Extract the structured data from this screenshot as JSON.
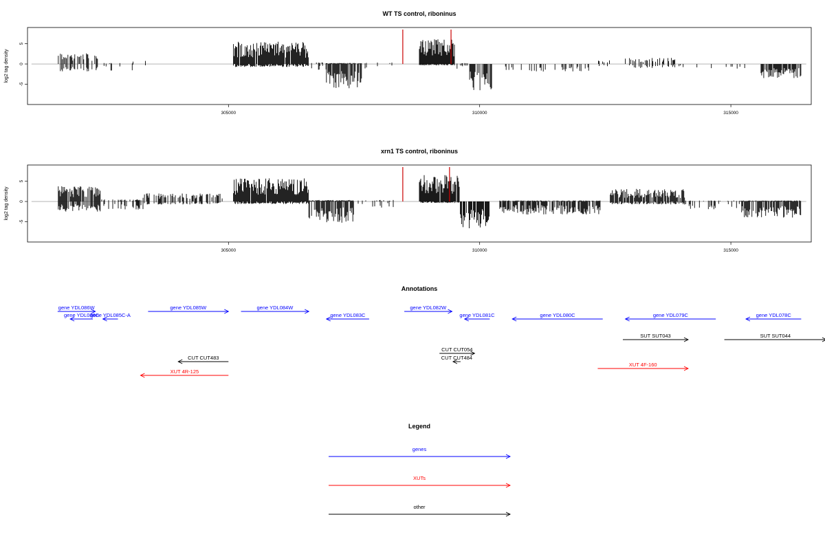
{
  "panels": [
    {
      "title": "WT TS control, riboninus",
      "ylabel": "log2 tag density",
      "yticks": [
        -5,
        0,
        5
      ],
      "ylim": [
        -10,
        9
      ],
      "xticks": [
        305000,
        310000,
        315000
      ],
      "xlim": [
        301000,
        316600
      ],
      "red_marks": [
        308470,
        309430
      ],
      "regions": [
        {
          "start": 301600,
          "end": 302400,
          "pos": 2.2,
          "neg": -1.6,
          "density": 0.55
        },
        {
          "start": 302400,
          "end": 303100,
          "pos": 0.2,
          "neg": -1.3,
          "density": 0.25
        },
        {
          "start": 303100,
          "end": 304300,
          "pos": 0.8,
          "neg": -0.3,
          "density": 0.04
        },
        {
          "start": 305100,
          "end": 306600,
          "pos": 4.4,
          "neg": -0.6,
          "density": 0.95
        },
        {
          "start": 306600,
          "end": 306950,
          "pos": 0.4,
          "neg": -1.2,
          "density": 0.2
        },
        {
          "start": 306950,
          "end": 307650,
          "pos": 0.2,
          "neg": -4.8,
          "density": 0.95
        },
        {
          "start": 307650,
          "end": 308300,
          "pos": 0.3,
          "neg": -1.0,
          "density": 0.15
        },
        {
          "start": 308800,
          "end": 309500,
          "pos": 5.0,
          "neg": -0.3,
          "density": 0.95
        },
        {
          "start": 309550,
          "end": 309800,
          "pos": 0.2,
          "neg": -1.0,
          "density": 0.2
        },
        {
          "start": 309800,
          "end": 310250,
          "pos": 0.1,
          "neg": -5.2,
          "density": 0.95
        },
        {
          "start": 310500,
          "end": 312200,
          "pos": 0.1,
          "neg": -1.5,
          "density": 0.3
        },
        {
          "start": 312200,
          "end": 312900,
          "pos": 0.8,
          "neg": -0.6,
          "density": 0.1
        },
        {
          "start": 312900,
          "end": 313900,
          "pos": 1.2,
          "neg": -0.8,
          "density": 0.3
        },
        {
          "start": 313900,
          "end": 314700,
          "pos": 0.1,
          "neg": -1.0,
          "density": 0.1
        },
        {
          "start": 314700,
          "end": 315300,
          "pos": 0.1,
          "neg": -1.0,
          "density": 0.12
        },
        {
          "start": 315600,
          "end": 316400,
          "pos": 0.1,
          "neg": -2.8,
          "density": 0.9
        }
      ]
    },
    {
      "title": "xrn1 TS control, riboninus",
      "ylabel": "log2 tag density",
      "yticks": [
        -5,
        0,
        5
      ],
      "ylim": [
        -10,
        9
      ],
      "xticks": [
        305000,
        310000,
        315000
      ],
      "xlim": [
        301000,
        316600
      ],
      "red_marks": [
        308470,
        309400
      ],
      "regions": [
        {
          "start": 301600,
          "end": 302450,
          "pos": 3.0,
          "neg": -2.0,
          "density": 0.85
        },
        {
          "start": 302450,
          "end": 303300,
          "pos": 0.4,
          "neg": -1.6,
          "density": 0.45
        },
        {
          "start": 303300,
          "end": 304900,
          "pos": 1.6,
          "neg": -0.6,
          "density": 0.55
        },
        {
          "start": 305100,
          "end": 306600,
          "pos": 4.6,
          "neg": -0.5,
          "density": 0.95
        },
        {
          "start": 306600,
          "end": 307500,
          "pos": 0.3,
          "neg": -4.2,
          "density": 0.95
        },
        {
          "start": 307500,
          "end": 308300,
          "pos": 0.3,
          "neg": -1.2,
          "density": 0.2
        },
        {
          "start": 308800,
          "end": 309600,
          "pos": 5.2,
          "neg": -0.3,
          "density": 0.95
        },
        {
          "start": 309600,
          "end": 310200,
          "pos": 0.1,
          "neg": -5.4,
          "density": 0.95
        },
        {
          "start": 310400,
          "end": 312400,
          "pos": 0.2,
          "neg": -2.6,
          "density": 0.85
        },
        {
          "start": 312600,
          "end": 314100,
          "pos": 2.5,
          "neg": -0.6,
          "density": 0.8
        },
        {
          "start": 314100,
          "end": 315200,
          "pos": 0.2,
          "neg": -1.6,
          "density": 0.25
        },
        {
          "start": 315200,
          "end": 316400,
          "pos": 0.2,
          "neg": -3.2,
          "density": 0.95
        }
      ]
    }
  ],
  "annotations": {
    "title": "Annotations",
    "features": [
      {
        "label": "gene YDL086W",
        "start": 301600,
        "end": 302350,
        "dir": "right",
        "color": "#0000ff",
        "row": 0
      },
      {
        "label": "gene YDL086C",
        "start": 301850,
        "end": 302300,
        "dir": "left",
        "color": "#0000ff",
        "row": 1
      },
      {
        "label": "gene YDL085C-A",
        "start": 302500,
        "end": 302800,
        "dir": "left",
        "color": "#0000ff",
        "row": 1
      },
      {
        "label": "gene YDL085W",
        "start": 303400,
        "end": 305000,
        "dir": "right",
        "color": "#0000ff",
        "row": 0
      },
      {
        "label": "gene YDL084W",
        "start": 305250,
        "end": 306600,
        "dir": "right",
        "color": "#0000ff",
        "row": 0
      },
      {
        "label": "gene YDL083C",
        "start": 306950,
        "end": 307800,
        "dir": "left",
        "color": "#0000ff",
        "row": 1
      },
      {
        "label": "gene YDL082W",
        "start": 308500,
        "end": 309450,
        "dir": "right",
        "color": "#0000ff",
        "row": 0
      },
      {
        "label": "gene YDL081C",
        "start": 309700,
        "end": 310200,
        "dir": "left",
        "color": "#0000ff",
        "row": 1
      },
      {
        "label": "gene YDL080C",
        "start": 310650,
        "end": 312450,
        "dir": "left",
        "color": "#0000ff",
        "row": 1
      },
      {
        "label": "gene YDL079C",
        "start": 312900,
        "end": 314700,
        "dir": "left",
        "color": "#0000ff",
        "row": 1
      },
      {
        "label": "gene YDL078C",
        "start": 315300,
        "end": 316400,
        "dir": "left",
        "color": "#0000ff",
        "row": 1
      },
      {
        "label": "SUT SUT043",
        "start": 312850,
        "end": 314150,
        "dir": "right",
        "color": "#000000",
        "row": 2
      },
      {
        "label": "SUT SUT044",
        "start": 314870,
        "end": 316900,
        "dir": "right",
        "color": "#000000",
        "row": 2
      },
      {
        "label": "CUT CUT054",
        "start": 309200,
        "end": 309900,
        "dir": "right",
        "color": "#000000",
        "row": 3
      },
      {
        "label": "CUT CUT484",
        "start": 309470,
        "end": 309620,
        "dir": "left",
        "color": "#000000",
        "row": 4
      },
      {
        "label": "CUT CUT483",
        "start": 304000,
        "end": 305000,
        "dir": "left",
        "color": "#000000",
        "row": 4
      },
      {
        "label": "XUT 4F-160",
        "start": 312350,
        "end": 314150,
        "dir": "right",
        "color": "#ff0000",
        "row": 5
      },
      {
        "label": "XUT 4R-125",
        "start": 303250,
        "end": 305000,
        "dir": "left",
        "color": "#ff0000",
        "row": 6
      }
    ]
  },
  "legend": {
    "title": "Legend",
    "items": [
      {
        "label": "genes",
        "color": "#0000ff"
      },
      {
        "label": "XUTs",
        "color": "#ff0000"
      },
      {
        "label": "other",
        "color": "#000000"
      }
    ]
  }
}
